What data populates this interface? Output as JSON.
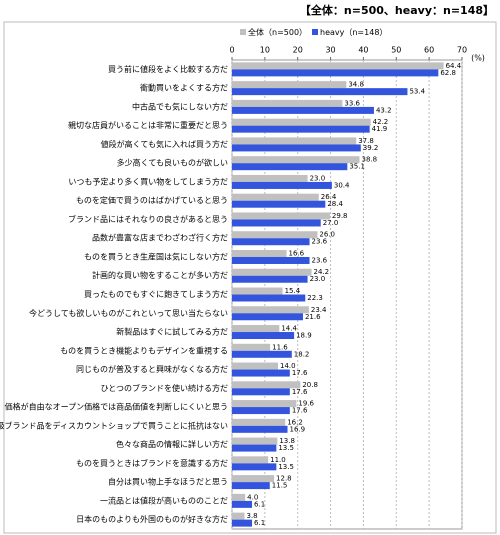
{
  "chart_data": {
    "type": "bar",
    "orientation": "horizontal",
    "title": "【全体：n=500、heavy：n=148】",
    "unit_label": "(%)",
    "categories": [
      "買う前に値段をよく比較する方だ",
      "衝動買いをよくする方だ",
      "中古品でも気にしない方だ",
      "親切な店員がいることは非常に重要だと思う",
      "値段が高くても気に入れば買う方だ",
      "多少高くても良いものが欲しい",
      "いつも予定より多く買い物をしてしまう方だ",
      "ものを定価で買うのはばかげていると思う",
      "ブランド品にはそれなりの良さがあると思う",
      "品数が豊富な店までわざわざ行く方だ",
      "ものを買うとき生産国は気にしない方だ",
      "計画的な買い物をすることが多い方だ",
      "買ったものでもすぐに飽きてしまう方だ",
      "今どうしても欲しいものがこれといって思い当たらない",
      "新製品はすぐに試してみる方だ",
      "ものを買うとき機能よりもデザインを重視する",
      "同じものが普及すると興味がなくなる方だ",
      "ひとつのブランドを使い続ける方だ",
      "価格が自由なオープン価格では商品価値を判断しにくいと思う",
      "高級ブランド品をディスカウントショップで買うことに抵抗はない",
      "色々な商品の情報に詳しい方だ",
      "ものを買うときはブランドを意識する方だ",
      "自分は買い物上手なほうだと思う",
      "一流品とは値段が高いもののことだ",
      "日本のものよりも外国のものが好きな方だ"
    ],
    "series": [
      {
        "name": "全体（n=500）",
        "color": "#c0c0c0",
        "values": [
          64.4,
          34.8,
          33.6,
          42.2,
          37.8,
          38.8,
          23.0,
          26.4,
          29.8,
          26.0,
          16.6,
          24.2,
          15.4,
          23.4,
          14.4,
          11.6,
          14.0,
          20.8,
          19.6,
          16.2,
          13.8,
          11.0,
          12.8,
          4.0,
          3.8
        ],
        "value_labels": [
          "64.4",
          "34.8",
          "33.6",
          "42.2",
          "37.8",
          "38.8",
          "23.0",
          "26.4",
          "29.8",
          "26.0",
          "16.6",
          "24.2",
          "15.4",
          "23.4",
          "14.4",
          "11.6",
          "14.0",
          "20.8",
          "19.6",
          "16.2",
          "13.8",
          "11.0",
          "12.8",
          "4.0",
          "3.8"
        ]
      },
      {
        "name": "heavy（n=148）",
        "color": "#3355dd",
        "values": [
          62.8,
          53.4,
          43.2,
          41.9,
          39.2,
          35.1,
          30.4,
          28.4,
          27.0,
          23.6,
          23.6,
          23.0,
          22.3,
          21.6,
          18.9,
          18.2,
          17.6,
          17.6,
          17.6,
          16.9,
          13.5,
          13.5,
          11.5,
          6.1,
          6.1
        ],
        "value_labels": [
          "62.8",
          "53.4",
          "43.2",
          "41.9",
          "39.2",
          "35.1",
          "30.4",
          "28.4",
          "27.0",
          "23.6",
          "23.6",
          "23.0",
          "22.3",
          "21.6",
          "18.9",
          "18.2",
          "17.6",
          "17.6",
          "17.6",
          "16.9",
          "13.5",
          "13.5",
          "11.5",
          "6.1",
          "6.1"
        ]
      }
    ],
    "xlim": [
      0,
      70
    ],
    "xticks": [
      0,
      10,
      20,
      30,
      40,
      50,
      60,
      70
    ],
    "grid": true
  }
}
